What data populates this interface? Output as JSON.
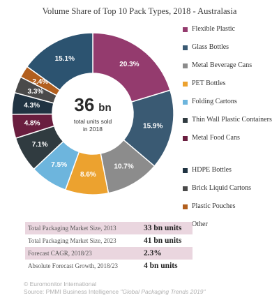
{
  "chart_data": {
    "type": "pie",
    "title": "Volume Share of Top 10 Pack Types, 2018 - Australasia",
    "categories": [
      "Flexible Plastic",
      "Glass Bottles",
      "Metal Beverage Cans",
      "PET Bottles",
      "Folding Cartons",
      "Thin Wall Plastic Containers",
      "Metal Food Cans",
      "HDPE Bottles",
      "Brick Liquid Cartons",
      "Plastic Pouches",
      "Other"
    ],
    "values": [
      20.3,
      15.9,
      10.7,
      8.6,
      7.5,
      7.1,
      4.8,
      4.3,
      3.3,
      2.4,
      15.1
    ],
    "labels": [
      "20.3%",
      "15.9%",
      "10.7%",
      "8.6%",
      "7.5%",
      "7.1%",
      "4.8%",
      "4.3%",
      "3.3%",
      "2.4%",
      "15.1%"
    ],
    "colors": [
      "#943b6e",
      "#3a5a73",
      "#8c8c8c",
      "#eca22f",
      "#6db5dd",
      "#303b40",
      "#6a1e3f",
      "#203342",
      "#4a4a4a",
      "#b25f1e",
      "#2c5370"
    ],
    "center": {
      "value": "36",
      "unit": "bn",
      "caption_line1": "total units sold",
      "caption_line2": "in 2018"
    }
  },
  "stats": [
    {
      "label": "Total Packaging Market Size, 2013",
      "value": "33 bn units",
      "shaded": true
    },
    {
      "label": "Total Packaging Market Size, 2023",
      "value": "41 bn units",
      "shaded": false
    },
    {
      "label": "Forecast CAGR, 2018/23",
      "value": "2.3%",
      "shaded": true
    },
    {
      "label": "Absolute Forecast Growth, 2018/23",
      "value": "4 bn units",
      "shaded": false
    }
  ],
  "footer": {
    "line1": "© Euromonitor International",
    "line2_prefix": "Source: PMMI Business Intelligence ",
    "line2_italic": "\"Global Packaging Trends 2019\""
  }
}
